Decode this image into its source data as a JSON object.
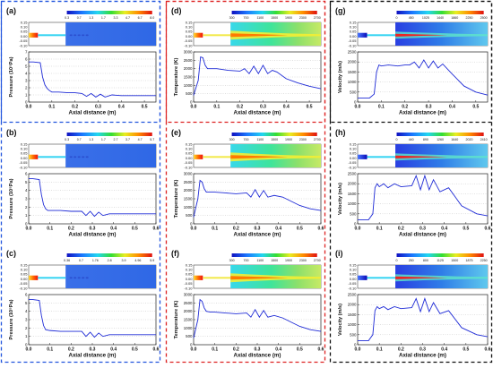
{
  "frame_colors": [
    "#2255dd",
    "#dd2222",
    "#111111"
  ],
  "axis_color": "#222222",
  "line_color": "#1f2bd6",
  "chart_data": [
    {
      "type": "line",
      "panel": "(a)",
      "column": 0,
      "row": 0,
      "quantity": "pressure",
      "contour_labels": [
        "0.3",
        "0.7",
        "1.3",
        "1.7",
        "3.3",
        "4.7",
        "6.7",
        "8.0"
      ],
      "contour_range": [
        0.3,
        8.0
      ],
      "contour_yticks": [
        "0.15",
        "0.10",
        "0.05",
        "0.00",
        "-0.05",
        "-0.10"
      ],
      "xlabel": "Axial distance (m)",
      "ylabel": "Pressure (10⁵Pa)",
      "xlim": [
        0,
        0.55
      ],
      "xticks": [
        "0.0",
        "0.1",
        "0.2",
        "0.3",
        "0.4",
        "0.5"
      ],
      "ylim": [
        0,
        7
      ],
      "yticks": [
        "0",
        "1",
        "2",
        "3",
        "4",
        "5",
        "6",
        "7"
      ],
      "x": [
        0,
        0.02,
        0.05,
        0.06,
        0.07,
        0.08,
        0.09,
        0.1,
        0.13,
        0.17,
        0.2,
        0.23,
        0.25,
        0.27,
        0.29,
        0.31,
        0.33,
        0.36,
        0.4,
        0.45,
        0.5,
        0.55
      ],
      "y": [
        5.6,
        5.6,
        5.5,
        3.5,
        2.4,
        1.9,
        1.6,
        1.4,
        1.4,
        1.3,
        1.3,
        1.2,
        0.8,
        1.2,
        0.7,
        1.1,
        0.7,
        1.0,
        0.9,
        0.9,
        0.9,
        0.9
      ]
    },
    {
      "type": "line",
      "panel": "(b)",
      "column": 0,
      "row": 1,
      "quantity": "pressure",
      "contour_labels": [
        "0.3",
        "0.7",
        "1.3",
        "1.7",
        "2.7",
        "3.7",
        "4.7",
        "5.7"
      ],
      "contour_range": [
        0.3,
        5.7
      ],
      "contour_yticks": [
        "0.15",
        "0.10",
        "0.05",
        "0.00",
        "-0.05",
        "-0.10"
      ],
      "xlabel": "Axial distance (m)",
      "ylabel": "Pressure (10⁵Pa)",
      "xlim": [
        0,
        0.6
      ],
      "xticks": [
        "0.0",
        "0.1",
        "0.2",
        "0.3",
        "0.4",
        "0.5",
        "0.6"
      ],
      "ylim": [
        0,
        6
      ],
      "yticks": [
        "0",
        "1",
        "2",
        "3",
        "4",
        "5",
        "6"
      ],
      "x": [
        0,
        0.02,
        0.05,
        0.06,
        0.07,
        0.08,
        0.09,
        0.1,
        0.15,
        0.2,
        0.25,
        0.27,
        0.29,
        0.31,
        0.33,
        0.35,
        0.38,
        0.45,
        0.55,
        0.6
      ],
      "y": [
        5.4,
        5.4,
        5.3,
        3.5,
        2.3,
        1.8,
        1.6,
        1.6,
        1.6,
        1.5,
        1.5,
        1.0,
        1.5,
        0.9,
        1.4,
        1.0,
        1.2,
        1.2,
        1.2,
        1.2
      ]
    },
    {
      "type": "line",
      "panel": "(c)",
      "column": 0,
      "row": 2,
      "quantity": "pressure",
      "contour_labels": [
        "0.36",
        "0.7",
        "1.76",
        "2.8",
        "3.9",
        "4.96",
        "5.9"
      ],
      "contour_range": [
        0.36,
        5.9
      ],
      "contour_yticks": [
        "0.15",
        "0.10",
        "0.05",
        "0.00",
        "-0.05",
        "-0.10"
      ],
      "xlabel": "Axial distance (m)",
      "ylabel": "Pressure (10⁵Pa)",
      "xlim": [
        0,
        0.6
      ],
      "xticks": [
        "0.0",
        "0.1",
        "0.2",
        "0.3",
        "0.4",
        "0.5",
        "0.6"
      ],
      "ylim": [
        0,
        6
      ],
      "yticks": [
        "0",
        "1",
        "2",
        "3",
        "4",
        "5",
        "6"
      ],
      "x": [
        0,
        0.02,
        0.05,
        0.06,
        0.07,
        0.08,
        0.1,
        0.15,
        0.2,
        0.25,
        0.27,
        0.29,
        0.31,
        0.33,
        0.35,
        0.38,
        0.45,
        0.55,
        0.6
      ],
      "y": [
        5.4,
        5.4,
        5.3,
        3.5,
        2.3,
        1.8,
        1.7,
        1.6,
        1.6,
        1.6,
        1.0,
        1.5,
        0.9,
        1.4,
        1.0,
        1.2,
        1.2,
        1.2,
        1.2
      ]
    },
    {
      "type": "line",
      "panel": "(d)",
      "column": 1,
      "row": 0,
      "quantity": "temperature",
      "contour_labels": [
        "300",
        "700",
        "1100",
        "1500",
        "1900",
        "2300",
        "2700"
      ],
      "contour_range": [
        300,
        2700
      ],
      "contour_yticks": [
        "0.15",
        "0.10",
        "0.05",
        "0.00",
        "-0.05",
        "-0.10"
      ],
      "xlabel": "Axial distance (m)",
      "ylabel": "Temperature (K)",
      "xlim": [
        0,
        0.55
      ],
      "xticks": [
        "0.0",
        "0.1",
        "0.2",
        "0.3",
        "0.4",
        "0.5"
      ],
      "ylim": [
        0,
        3000
      ],
      "yticks": [
        "0",
        "500",
        "1000",
        "1500",
        "2000",
        "2500",
        "3000"
      ],
      "x": [
        0,
        0.02,
        0.03,
        0.04,
        0.05,
        0.06,
        0.08,
        0.1,
        0.15,
        0.2,
        0.22,
        0.24,
        0.26,
        0.28,
        0.3,
        0.32,
        0.34,
        0.36,
        0.4,
        0.45,
        0.5,
        0.55
      ],
      "y": [
        400,
        1300,
        2700,
        2650,
        2200,
        2000,
        2000,
        2000,
        1900,
        1850,
        2000,
        1700,
        2150,
        1700,
        2200,
        1700,
        1900,
        1800,
        1400,
        1150,
        950,
        800
      ]
    },
    {
      "type": "line",
      "panel": "(e)",
      "column": 1,
      "row": 1,
      "quantity": "temperature",
      "contour_labels": [
        "300",
        "700",
        "1100",
        "1500",
        "1900",
        "2300",
        "2700"
      ],
      "contour_range": [
        300,
        2700
      ],
      "contour_yticks": [
        "0.15",
        "0.10",
        "0.05",
        "0.00",
        "-0.05",
        "-0.10"
      ],
      "xlabel": "Axial distance (m)",
      "ylabel": "Temperature (K)",
      "xlim": [
        0,
        0.6
      ],
      "xticks": [
        "0.0",
        "0.1",
        "0.2",
        "0.3",
        "0.4",
        "0.5",
        "0.6"
      ],
      "ylim": [
        0,
        3000
      ],
      "yticks": [
        "0",
        "500",
        "1000",
        "1500",
        "2000",
        "2500",
        "3000"
      ],
      "x": [
        0,
        0.02,
        0.03,
        0.04,
        0.05,
        0.06,
        0.08,
        0.1,
        0.15,
        0.2,
        0.25,
        0.27,
        0.29,
        0.31,
        0.33,
        0.35,
        0.38,
        0.42,
        0.5,
        0.55,
        0.6
      ],
      "y": [
        400,
        1500,
        2600,
        2500,
        2100,
        1900,
        1900,
        1900,
        1850,
        1800,
        1850,
        1600,
        2050,
        1600,
        2000,
        1600,
        1700,
        1600,
        1100,
        900,
        800
      ]
    },
    {
      "type": "line",
      "panel": "(f)",
      "column": 1,
      "row": 2,
      "quantity": "temperature",
      "contour_labels": [
        "300",
        "700",
        "1100",
        "1500",
        "1900",
        "2300",
        "2700"
      ],
      "contour_range": [
        300,
        2700
      ],
      "contour_yticks": [
        "0.15",
        "0.10",
        "0.05",
        "0.00",
        "-0.05",
        "-0.10"
      ],
      "xlabel": "Axial distance (m)",
      "ylabel": "Temperature (K)",
      "xlim": [
        0,
        0.6
      ],
      "xticks": [
        "0.0",
        "0.1",
        "0.2",
        "0.3",
        "0.4",
        "0.5",
        "0.6"
      ],
      "ylim": [
        0,
        3000
      ],
      "yticks": [
        "0",
        "500",
        "1000",
        "1500",
        "2000",
        "2500",
        "3000"
      ],
      "x": [
        0,
        0.02,
        0.03,
        0.04,
        0.05,
        0.06,
        0.08,
        0.1,
        0.15,
        0.2,
        0.25,
        0.27,
        0.29,
        0.31,
        0.33,
        0.35,
        0.38,
        0.42,
        0.5,
        0.55,
        0.6
      ],
      "y": [
        400,
        1500,
        2700,
        2600,
        2200,
        2000,
        1950,
        1950,
        1900,
        1850,
        1900,
        1650,
        2100,
        1650,
        2050,
        1650,
        1750,
        1600,
        1100,
        900,
        800
      ]
    },
    {
      "type": "line",
      "panel": "(g)",
      "column": 2,
      "row": 0,
      "quantity": "velocity",
      "contour_labels": [
        "0",
        "450",
        "1025",
        "1440",
        "1860",
        "2250",
        "2500"
      ],
      "contour_range": [
        0,
        2500
      ],
      "contour_yticks": [
        "0.15",
        "0.10",
        "0.05",
        "0.00",
        "-0.05",
        "-0.10"
      ],
      "xlabel": "Axial distance (m)",
      "ylabel": "Velocity (m/s)",
      "xlim": [
        0,
        0.55
      ],
      "xticks": [
        "0.0",
        "0.1",
        "0.2",
        "0.3",
        "0.4",
        "0.5"
      ],
      "ylim": [
        0,
        2500
      ],
      "yticks": [
        "0",
        "500",
        "1000",
        "1500",
        "2000",
        "2500"
      ],
      "x": [
        0,
        0.05,
        0.07,
        0.08,
        0.09,
        0.1,
        0.13,
        0.17,
        0.2,
        0.22,
        0.24,
        0.26,
        0.28,
        0.3,
        0.32,
        0.34,
        0.36,
        0.4,
        0.45,
        0.5,
        0.55
      ],
      "y": [
        200,
        200,
        400,
        1500,
        1850,
        1800,
        1850,
        1800,
        1850,
        1850,
        2000,
        1700,
        2100,
        1700,
        2050,
        1700,
        1900,
        1400,
        800,
        500,
        350
      ]
    },
    {
      "type": "line",
      "panel": "(h)",
      "column": 2,
      "row": 1,
      "quantity": "velocity",
      "contour_labels": [
        "0",
        "440",
        "890",
        "1260",
        "1640",
        "2020",
        "2410"
      ],
      "contour_range": [
        0,
        2410
      ],
      "contour_yticks": [
        "0.15",
        "0.10",
        "0.05",
        "0.00",
        "-0.05",
        "-0.10"
      ],
      "xlabel": "Axial distance (m)",
      "ylabel": "Velocity (m/s)",
      "xlim": [
        0,
        0.6
      ],
      "xticks": [
        "0.0",
        "0.1",
        "0.2",
        "0.3",
        "0.4",
        "0.5",
        "0.6"
      ],
      "ylim": [
        0,
        2500
      ],
      "yticks": [
        "0",
        "500",
        "1000",
        "1500",
        "2000",
        "2500"
      ],
      "x": [
        0,
        0.05,
        0.07,
        0.08,
        0.09,
        0.1,
        0.12,
        0.14,
        0.17,
        0.2,
        0.25,
        0.27,
        0.29,
        0.31,
        0.33,
        0.35,
        0.38,
        0.42,
        0.48,
        0.55,
        0.6
      ],
      "y": [
        200,
        200,
        500,
        1800,
        2000,
        1850,
        2000,
        1800,
        2000,
        1850,
        1900,
        2400,
        1700,
        2400,
        1700,
        2200,
        1600,
        1800,
        900,
        500,
        400
      ]
    },
    {
      "type": "line",
      "panel": "(i)",
      "column": 2,
      "row": 2,
      "quantity": "velocity",
      "contour_labels": [
        "0",
        "250",
        "800",
        "1125",
        "1500",
        "1875",
        "2250"
      ],
      "contour_range": [
        0,
        2250
      ],
      "contour_yticks": [
        "0.15",
        "0.10",
        "0.05",
        "0.00",
        "-0.05",
        "-0.10"
      ],
      "xlabel": "Axial distance (m)",
      "ylabel": "Velocity (m/s)",
      "xlim": [
        0,
        0.6
      ],
      "xticks": [
        "0.0",
        "0.1",
        "0.2",
        "0.3",
        "0.4",
        "0.5",
        "0.6"
      ],
      "ylim": [
        0,
        2500
      ],
      "yticks": [
        "0",
        "500",
        "1000",
        "1500",
        "2000",
        "2500"
      ],
      "x": [
        0,
        0.05,
        0.07,
        0.08,
        0.09,
        0.1,
        0.12,
        0.14,
        0.17,
        0.2,
        0.25,
        0.27,
        0.29,
        0.31,
        0.33,
        0.35,
        0.38,
        0.42,
        0.48,
        0.55,
        0.6
      ],
      "y": [
        200,
        200,
        500,
        1700,
        1900,
        1800,
        1900,
        1750,
        1900,
        1800,
        1850,
        2300,
        1650,
        2300,
        1650,
        2100,
        1550,
        1700,
        850,
        500,
        400
      ]
    }
  ]
}
